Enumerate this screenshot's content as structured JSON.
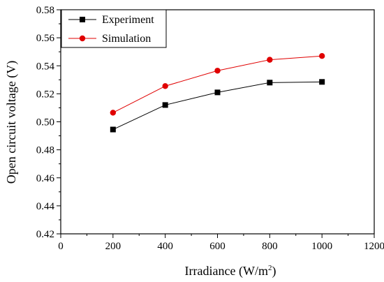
{
  "chart_data": {
    "type": "line",
    "xlabel": "Irradiance (W/m",
    "xlabel_sup": "2",
    "xlabel_tail": ")",
    "ylabel": "Open circuit voltage (V)",
    "xlim": [
      0,
      1200
    ],
    "ylim": [
      0.42,
      0.58
    ],
    "xticks": [
      0,
      200,
      400,
      600,
      800,
      1000,
      1200
    ],
    "yticks": [
      0.42,
      0.44,
      0.46,
      0.48,
      0.5,
      0.52,
      0.54,
      0.56,
      0.58
    ],
    "ytick_labels": [
      "0.42",
      "0.44",
      "0.46",
      "0.48",
      "0.50",
      "0.52",
      "0.54",
      "0.56",
      "0.58"
    ],
    "grid": false,
    "legend_position": "top-left",
    "x": [
      200,
      400,
      600,
      800,
      1000
    ],
    "series": [
      {
        "name": "Experiment",
        "marker": "square",
        "color": "#000000",
        "line_color": "#000000",
        "values": [
          0.4945,
          0.512,
          0.521,
          0.528,
          0.5285
        ]
      },
      {
        "name": "Simulation",
        "marker": "circle",
        "color": "#e00000",
        "line_color": "#e00000",
        "values": [
          0.5065,
          0.5255,
          0.5365,
          0.5443,
          0.547
        ]
      }
    ]
  }
}
